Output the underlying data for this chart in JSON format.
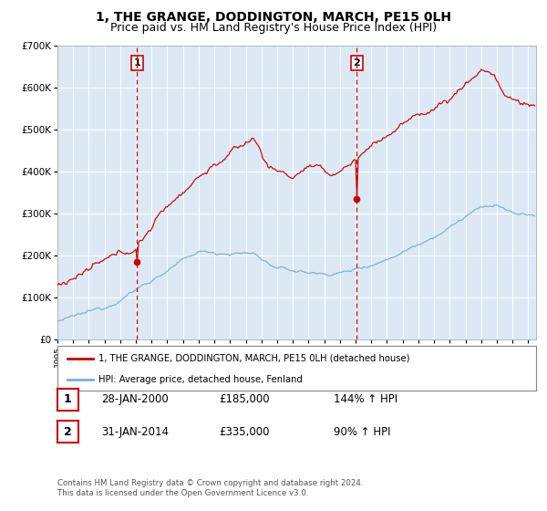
{
  "title": "1, THE GRANGE, DODDINGTON, MARCH, PE15 0LH",
  "subtitle": "Price paid vs. HM Land Registry's House Price Index (HPI)",
  "legend_line1": "1, THE GRANGE, DODDINGTON, MARCH, PE15 0LH (detached house)",
  "legend_line2": "HPI: Average price, detached house, Fenland",
  "footer1": "Contains HM Land Registry data © Crown copyright and database right 2024.",
  "footer2": "This data is licensed under the Open Government Licence v3.0.",
  "title_fontsize": 10,
  "subtitle_fontsize": 9,
  "background_color": "#dce9f5",
  "red_color": "#cc0000",
  "blue_color": "#7aafd4",
  "grid_color": "#ffffff",
  "ylim": [
    0,
    700000
  ],
  "xlim_start": 1995,
  "xlim_end": 2025.5,
  "sale1_x": 2000.08,
  "sale1_y": 185000,
  "sale2_x": 2014.08,
  "sale2_y": 335000,
  "yticks": [
    0,
    100000,
    200000,
    300000,
    400000,
    500000,
    600000,
    700000
  ],
  "ytick_labels": [
    "£0",
    "£100K",
    "£200K",
    "£300K",
    "£400K",
    "£500K",
    "£600K",
    "£700K"
  ],
  "annotation1": {
    "label": "1",
    "date": "28-JAN-2000",
    "price": "£185,000",
    "pct": "144% ↑ HPI"
  },
  "annotation2": {
    "label": "2",
    "date": "31-JAN-2014",
    "price": "£335,000",
    "pct": "90% ↑ HPI"
  }
}
